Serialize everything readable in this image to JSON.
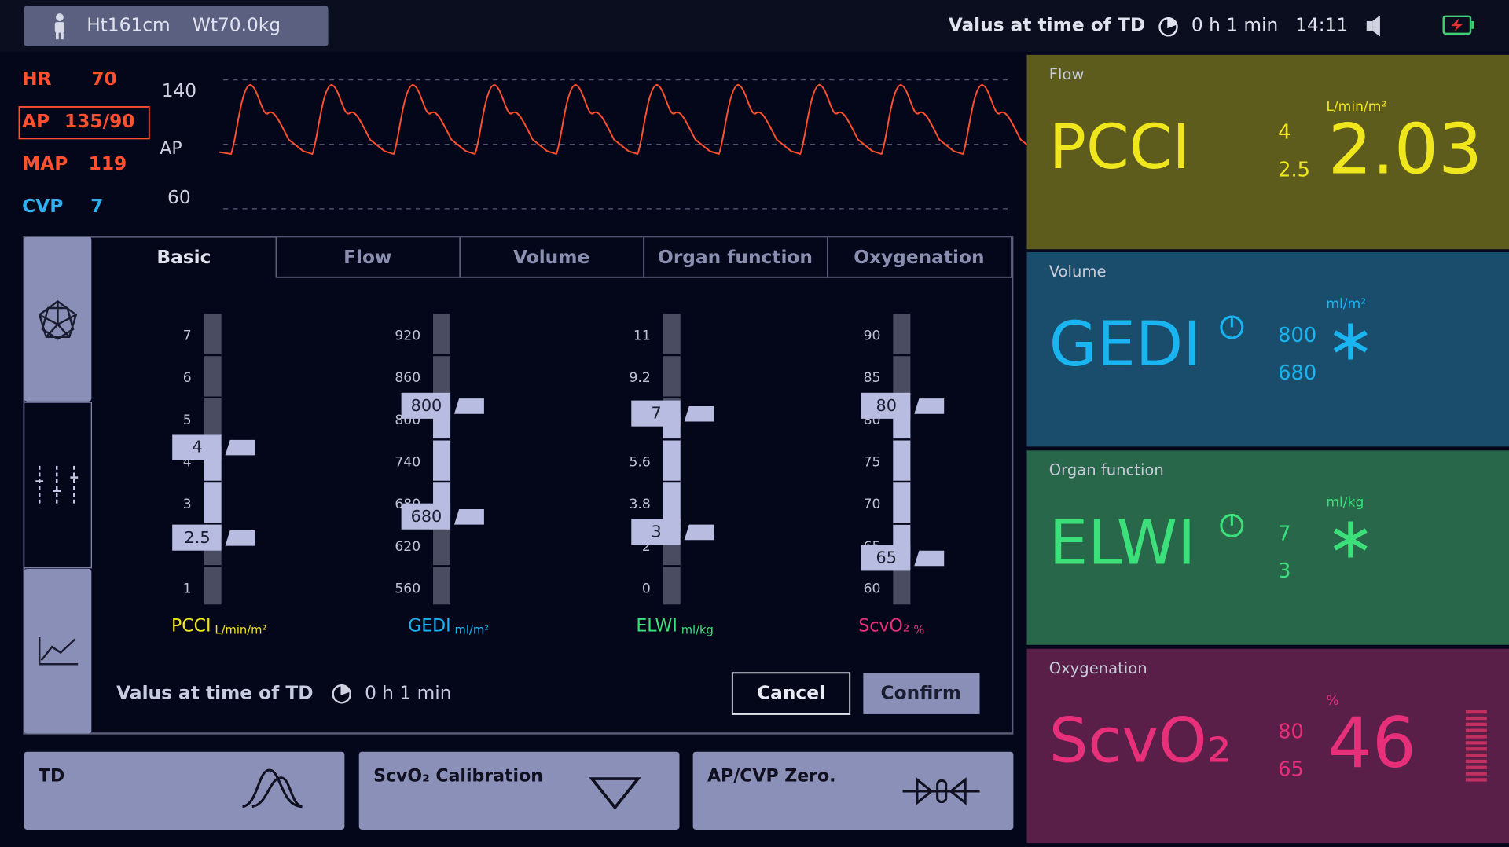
{
  "header": {
    "height": "Ht161cm",
    "weight": "Wt70.0kg",
    "td_label": "Valus at time of TD",
    "td_time": "0 h 1 min",
    "clock": "14:11"
  },
  "vitals": [
    {
      "label": "HR",
      "value": "70"
    },
    {
      "label": "AP",
      "value": "135/90"
    },
    {
      "label": "MAP",
      "value": "119"
    },
    {
      "label": "CVP",
      "value": "7"
    }
  ],
  "waveform": {
    "top": "140",
    "label": "AP",
    "bottom": "60"
  },
  "tabs": [
    "Basic",
    "Flow",
    "Volume",
    "Organ function",
    "Oxygenation"
  ],
  "gauges": [
    {
      "name": "PCCI",
      "unit": "L/min/m²",
      "ticks": [
        "7",
        "6",
        "5",
        "4",
        "3",
        "1"
      ],
      "upper": "4",
      "lower": "2.5"
    },
    {
      "name": "GEDI",
      "unit": "ml/m²",
      "ticks": [
        "920",
        "860",
        "800",
        "740",
        "680",
        "620",
        "560"
      ],
      "upper": "800",
      "lower": "680"
    },
    {
      "name": "ELWI",
      "unit": "ml/kg",
      "ticks": [
        "11",
        "9.2",
        "5.6",
        "3.8",
        "2",
        "0"
      ],
      "upper": "7",
      "lower": "3"
    },
    {
      "name": "ScvO₂",
      "unit": "%",
      "ticks": [
        "90",
        "85",
        "80",
        "75",
        "70",
        "65",
        "60"
      ],
      "upper": "80",
      "lower": "65"
    }
  ],
  "footer": {
    "td_label": "Valus at time of TD",
    "td_time": "0 h 1 min",
    "cancel": "Cancel",
    "confirm": "Confirm"
  },
  "buttons": [
    "TD",
    "ScvO₂ Calibration",
    "AP/CVP Zero."
  ],
  "panels": [
    {
      "title": "Flow",
      "name": "PCCI",
      "upper": "4",
      "lower": "2.5",
      "unit": "L/min/m²",
      "value": "2.03"
    },
    {
      "title": "Volume",
      "name": "GEDI",
      "upper": "800",
      "lower": "680",
      "unit": "ml/m²",
      "value": "∗"
    },
    {
      "title": "Organ function",
      "name": "ELWI",
      "upper": "7",
      "lower": "3",
      "unit": "ml/kg",
      "value": "∗"
    },
    {
      "title": "Oxygenation",
      "name": "ScvO₂",
      "upper": "80",
      "lower": "65",
      "unit": "%",
      "value": "46"
    }
  ]
}
